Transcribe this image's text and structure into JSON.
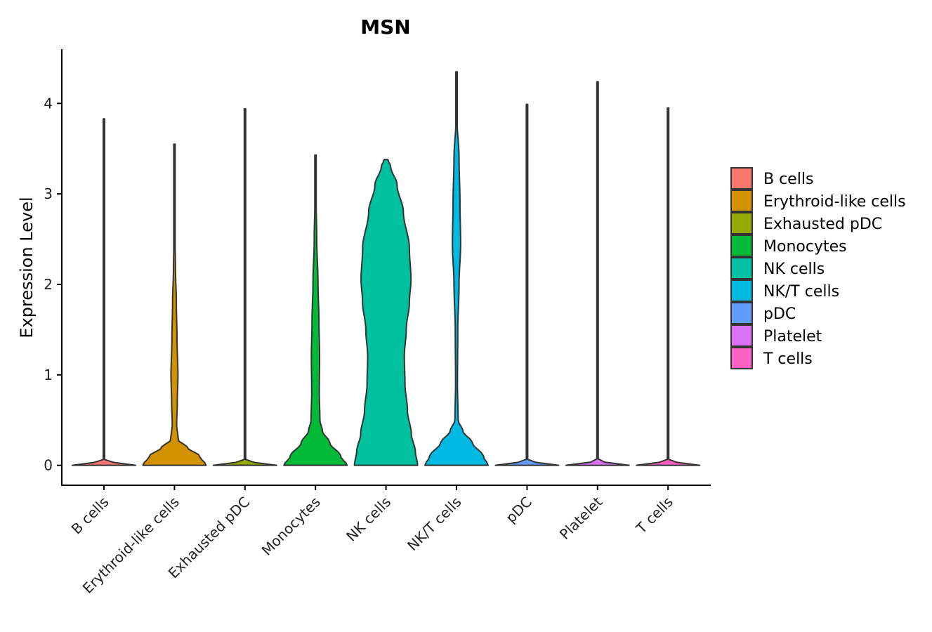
{
  "chart_data": {
    "type": "violin",
    "title": "MSN",
    "xlabel": "",
    "ylabel": "Expression Level",
    "ylim": [
      -0.22,
      4.6
    ],
    "yticks": [
      0,
      1,
      2,
      3,
      4
    ],
    "grid": false,
    "legend_position": "right",
    "categories": [
      "B cells",
      "Erythroid-like cells",
      "Exhausted pDC",
      "Monocytes",
      "NK cells",
      "NK/T cells",
      "pDC",
      "Platelet",
      "T cells"
    ],
    "colors": [
      "#F8766D",
      "#D39200",
      "#93AA00",
      "#00BA38",
      "#00C19F",
      "#00B9E3",
      "#619CFF",
      "#DB72FB",
      "#FF61C3"
    ],
    "series": [
      {
        "name": "B cells",
        "max": 3.83,
        "profile": [
          [
            0,
            1.0
          ],
          [
            0.05,
            0.02
          ],
          [
            0.6,
            0.008
          ],
          [
            3.83,
            0.004
          ]
        ]
      },
      {
        "name": "Erythroid-like cells",
        "max": 3.55,
        "profile": [
          [
            0,
            1.0
          ],
          [
            0.1,
            0.8
          ],
          [
            0.2,
            0.4
          ],
          [
            0.28,
            0.12
          ],
          [
            0.45,
            0.07
          ],
          [
            0.7,
            0.09
          ],
          [
            1.0,
            0.11
          ],
          [
            1.4,
            0.08
          ],
          [
            1.8,
            0.06
          ],
          [
            2.2,
            0.03
          ],
          [
            2.6,
            0.01
          ],
          [
            3.55,
            0.004
          ]
        ]
      },
      {
        "name": "Exhausted pDC",
        "max": 3.94,
        "profile": [
          [
            0,
            1.0
          ],
          [
            0.05,
            0.02
          ],
          [
            0.6,
            0.008
          ],
          [
            3.94,
            0.004
          ]
        ]
      },
      {
        "name": "Monocytes",
        "max": 3.43,
        "profile": [
          [
            0,
            1.0
          ],
          [
            0.1,
            0.8
          ],
          [
            0.25,
            0.45
          ],
          [
            0.38,
            0.22
          ],
          [
            0.5,
            0.14
          ],
          [
            0.8,
            0.12
          ],
          [
            1.2,
            0.13
          ],
          [
            1.6,
            0.11
          ],
          [
            2.0,
            0.08
          ],
          [
            2.5,
            0.04
          ],
          [
            3.0,
            0.015
          ],
          [
            3.43,
            0.004
          ]
        ]
      },
      {
        "name": "NK cells",
        "max": 3.38,
        "profile": [
          [
            0,
            1.0
          ],
          [
            0.15,
            0.93
          ],
          [
            0.35,
            0.8
          ],
          [
            0.6,
            0.68
          ],
          [
            0.9,
            0.6
          ],
          [
            1.2,
            0.58
          ],
          [
            1.5,
            0.64
          ],
          [
            1.8,
            0.74
          ],
          [
            2.05,
            0.79
          ],
          [
            2.4,
            0.74
          ],
          [
            2.8,
            0.55
          ],
          [
            3.1,
            0.35
          ],
          [
            3.3,
            0.15
          ],
          [
            3.38,
            0.06
          ]
        ]
      },
      {
        "name": "NK/T cells",
        "max": 4.35,
        "profile": [
          [
            0,
            1.0
          ],
          [
            0.1,
            0.85
          ],
          [
            0.25,
            0.5
          ],
          [
            0.38,
            0.2
          ],
          [
            0.5,
            0.05
          ],
          [
            0.9,
            0.03
          ],
          [
            1.5,
            0.04
          ],
          [
            2.0,
            0.08
          ],
          [
            2.45,
            0.13
          ],
          [
            2.9,
            0.11
          ],
          [
            3.4,
            0.08
          ],
          [
            3.8,
            0.02
          ],
          [
            4.35,
            0.004
          ]
        ]
      },
      {
        "name": "pDC",
        "max": 3.99,
        "profile": [
          [
            0,
            1.0
          ],
          [
            0.05,
            0.02
          ],
          [
            0.6,
            0.008
          ],
          [
            3.99,
            0.004
          ]
        ]
      },
      {
        "name": "Platelet",
        "max": 4.24,
        "profile": [
          [
            0,
            1.0
          ],
          [
            0.05,
            0.02
          ],
          [
            0.6,
            0.008
          ],
          [
            4.24,
            0.004
          ]
        ]
      },
      {
        "name": "T cells",
        "max": 3.95,
        "profile": [
          [
            0,
            1.0
          ],
          [
            0.05,
            0.02
          ],
          [
            0.6,
            0.008
          ],
          [
            3.95,
            0.004
          ]
        ]
      }
    ]
  }
}
